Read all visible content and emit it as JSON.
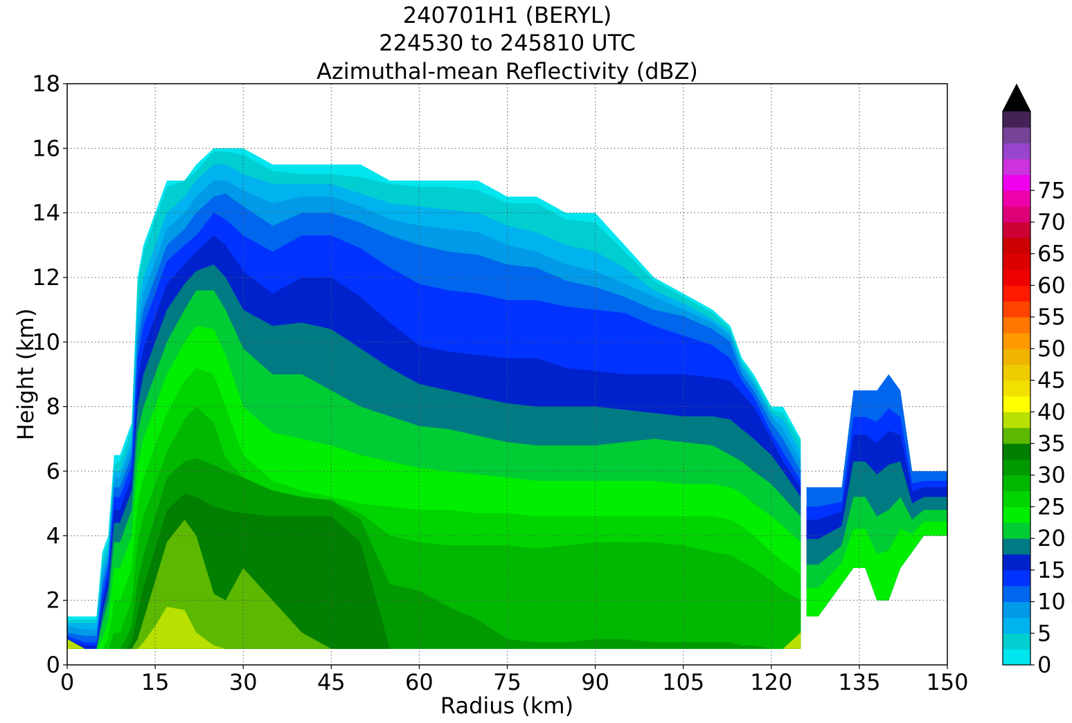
{
  "title_lines": [
    "240701H1 (BERYL)",
    "224530 to 245810 UTC",
    "Azimuthal-mean Reflectivity (dBZ)"
  ],
  "chart_data": {
    "type": "heatmap",
    "title": "240701H1 (BERYL) / 224530 to 245810 UTC / Azimuthal-mean Reflectivity (dBZ)",
    "xlabel": "Radius (km)",
    "ylabel": "Height (km)",
    "xlim": [
      0,
      150
    ],
    "ylim": [
      0,
      18
    ],
    "xticks": [
      0,
      15,
      30,
      45,
      60,
      75,
      90,
      105,
      120,
      135,
      150
    ],
    "yticks": [
      0,
      2,
      4,
      6,
      8,
      10,
      12,
      14,
      16,
      18
    ],
    "grid": true,
    "colorbar": {
      "label": "dBZ",
      "ticks": [
        0,
        5,
        10,
        15,
        20,
        25,
        30,
        35,
        40,
        45,
        50,
        55,
        60,
        65,
        70,
        75
      ],
      "levels_step": 2.5,
      "extend": "max",
      "colors": [
        "#00e5ee",
        "#00ced1",
        "#00b2ee",
        "#009ae8",
        "#0066ee",
        "#0033ff",
        "#0022cc",
        "#007b84",
        "#00cc33",
        "#00ee00",
        "#00d400",
        "#00b800",
        "#009a00",
        "#007f00",
        "#5cb800",
        "#b8e000",
        "#ffff00",
        "#f2e000",
        "#eecc00",
        "#eeb400",
        "#ff9900",
        "#ff7700",
        "#ff4400",
        "#ff1a00",
        "#ee0000",
        "#dd0000",
        "#cc0000",
        "#cc0033",
        "#dd0077",
        "#ee00aa",
        "#ee00ee",
        "#cc33dd",
        "#9944cc",
        "#774499",
        "#442255",
        "#000000"
      ]
    },
    "profiles": {
      "x": [
        0,
        3,
        5,
        6,
        7,
        8,
        9,
        10,
        11,
        12,
        13,
        15,
        17,
        20,
        22,
        25,
        27,
        30,
        35,
        40,
        45,
        50,
        55,
        60,
        65,
        70,
        75,
        80,
        85,
        90,
        95,
        100,
        105,
        110,
        113,
        115,
        117,
        120,
        122,
        125
      ],
      "top": [
        1.5,
        1.5,
        1.5,
        3.5,
        4.0,
        6.5,
        6.5,
        7.0,
        7.5,
        12.0,
        13.0,
        14.0,
        15.0,
        15.0,
        15.5,
        16.0,
        16.0,
        16.0,
        15.5,
        15.5,
        15.5,
        15.5,
        15.0,
        15.0,
        15.0,
        15.0,
        14.5,
        14.5,
        14.0,
        14.0,
        13.0,
        12.0,
        11.5,
        11.0,
        10.5,
        9.5,
        9.0,
        8.0,
        8.0,
        7.0
      ],
      "bottom": [
        0.8,
        0.5,
        0.5,
        0.5,
        0.5,
        0.5,
        0.5,
        0.5,
        0.5,
        0.5,
        0.5,
        0.5,
        0.5,
        0.5,
        0.5,
        0.5,
        0.5,
        0.5,
        0.5,
        0.5,
        0.5,
        0.5,
        0.5,
        0.5,
        0.5,
        0.5,
        0.5,
        0.5,
        0.5,
        0.5,
        0.5,
        0.5,
        0.5,
        0.5,
        0.5,
        0.5,
        0.5,
        0.5,
        0.5,
        1.0
      ],
      "contours": [
        {
          "dbz": 2.5,
          "h": [
            1.4,
            1.4,
            1.4,
            3.3,
            3.8,
            6.2,
            6.3,
            6.8,
            7.3,
            11.8,
            12.8,
            13.8,
            14.8,
            15.0,
            15.3,
            15.9,
            15.9,
            15.8,
            15.3,
            15.2,
            15.2,
            15.1,
            14.9,
            14.8,
            14.8,
            14.7,
            14.3,
            14.3,
            13.8,
            13.7,
            12.8,
            11.9,
            11.4,
            10.9,
            10.4,
            9.4,
            8.9,
            7.9,
            7.8,
            6.9
          ]
        },
        {
          "dbz": 5,
          "h": [
            1.3,
            1.3,
            1.3,
            3.0,
            3.6,
            6.0,
            6.0,
            6.5,
            7.0,
            11.0,
            12.0,
            13.0,
            14.0,
            14.5,
            15.0,
            15.5,
            15.5,
            15.2,
            14.9,
            14.9,
            14.9,
            14.6,
            14.3,
            14.2,
            14.1,
            14.0,
            13.6,
            13.4,
            13.0,
            12.8,
            12.3,
            11.6,
            11.2,
            10.7,
            10.3,
            9.3,
            8.8,
            7.8,
            7.6,
            6.6
          ]
        },
        {
          "dbz": 7.5,
          "h": [
            1.2,
            1.1,
            1.1,
            2.8,
            3.4,
            5.8,
            5.8,
            6.3,
            6.8,
            10.5,
            11.5,
            12.5,
            13.5,
            14.0,
            14.5,
            15.0,
            15.0,
            14.7,
            14.3,
            14.5,
            14.5,
            14.2,
            13.8,
            13.6,
            13.5,
            13.4,
            13.0,
            12.8,
            12.4,
            12.2,
            11.8,
            11.4,
            11.0,
            10.6,
            10.2,
            9.2,
            8.7,
            7.7,
            7.3,
            6.3
          ]
        },
        {
          "dbz": 10,
          "h": [
            1.0,
            0.9,
            0.9,
            2.5,
            3.2,
            5.5,
            5.5,
            6.0,
            6.5,
            10.0,
            11.0,
            12.0,
            13.0,
            13.5,
            14.0,
            14.5,
            14.6,
            14.2,
            13.6,
            14.0,
            14.0,
            13.7,
            13.3,
            13.0,
            12.8,
            12.7,
            12.4,
            12.3,
            11.9,
            11.7,
            11.4,
            11.0,
            10.8,
            10.4,
            10.0,
            9.0,
            8.5,
            7.5,
            7.0,
            6.0
          ]
        },
        {
          "dbz": 12.5,
          "h": [
            0.9,
            0.7,
            0.7,
            2.2,
            3.0,
            5.2,
            5.2,
            5.7,
            6.2,
            9.5,
            10.5,
            11.5,
            12.5,
            13.0,
            13.3,
            14.0,
            13.8,
            13.3,
            12.8,
            13.3,
            13.3,
            12.9,
            12.3,
            11.8,
            11.6,
            11.5,
            11.3,
            11.3,
            11.1,
            11.0,
            10.9,
            10.5,
            10.2,
            9.9,
            9.5,
            8.8,
            8.3,
            7.2,
            6.6,
            5.7
          ]
        },
        {
          "dbz": 15,
          "h": [
            0.8,
            0.6,
            0.6,
            1.9,
            2.7,
            4.8,
            4.8,
            5.3,
            5.8,
            8.8,
            9.8,
            10.8,
            11.8,
            12.4,
            12.8,
            13.3,
            13.0,
            12.2,
            11.5,
            12.0,
            12.0,
            11.4,
            10.6,
            9.9,
            9.7,
            9.6,
            9.5,
            9.5,
            9.2,
            9.1,
            9.0,
            9.0,
            9.0,
            8.9,
            8.8,
            8.4,
            8.0,
            7.0,
            6.3,
            5.5
          ]
        },
        {
          "dbz": 17.5,
          "h": [
            0.6,
            0.5,
            0.5,
            1.6,
            2.4,
            4.4,
            4.4,
            4.9,
            5.4,
            8.0,
            9.0,
            10.0,
            11.0,
            11.8,
            12.2,
            12.4,
            12.0,
            11.0,
            10.5,
            10.6,
            10.4,
            9.8,
            9.2,
            8.7,
            8.5,
            8.3,
            8.1,
            8.0,
            8.0,
            8.0,
            7.9,
            7.8,
            7.7,
            7.7,
            7.6,
            7.3,
            7.0,
            6.5,
            6.0,
            5.2
          ]
        },
        {
          "dbz": 20,
          "h": [
            0.5,
            0.5,
            0.5,
            1.3,
            2.0,
            3.8,
            3.8,
            4.3,
            4.8,
            7.2,
            8.0,
            9.0,
            10.0,
            11.0,
            11.6,
            11.6,
            11.0,
            9.8,
            9.0,
            9.0,
            8.5,
            8.0,
            7.7,
            7.4,
            7.3,
            7.1,
            6.9,
            6.8,
            6.8,
            6.8,
            6.9,
            7.0,
            6.9,
            6.8,
            6.5,
            6.3,
            6.0,
            5.6,
            5.2,
            4.6
          ]
        },
        {
          "dbz": 22.5,
          "h": [
            0.5,
            0.5,
            0.5,
            0.8,
            1.4,
            3.0,
            3.0,
            3.5,
            4.0,
            6.2,
            7.0,
            8.0,
            9.0,
            10.0,
            10.5,
            10.4,
            9.6,
            8.0,
            7.2,
            7.0,
            6.8,
            6.5,
            6.3,
            6.1,
            6.0,
            5.9,
            5.8,
            5.7,
            5.7,
            5.7,
            5.7,
            5.7,
            5.6,
            5.6,
            5.5,
            5.3,
            5.0,
            4.6,
            4.3,
            3.8
          ]
        },
        {
          "dbz": 25,
          "h": [
            0.5,
            0.5,
            0.5,
            0.5,
            0.8,
            2.0,
            2.0,
            2.5,
            3.0,
            5.0,
            5.8,
            6.8,
            7.8,
            8.8,
            9.2,
            9.0,
            8.0,
            6.5,
            5.7,
            5.4,
            5.2,
            5.0,
            4.9,
            4.8,
            4.8,
            4.7,
            4.7,
            4.6,
            4.6,
            4.6,
            4.6,
            4.6,
            4.6,
            4.6,
            4.5,
            4.3,
            4.0,
            3.5,
            3.2,
            2.8
          ]
        },
        {
          "dbz": 27.5,
          "h": [
            0.5,
            0.5,
            0.5,
            0.5,
            0.5,
            1.0,
            1.0,
            1.5,
            2.0,
            3.8,
            4.6,
            5.6,
            6.6,
            7.6,
            8.0,
            7.5,
            6.4,
            5.8,
            5.4,
            5.2,
            5.1,
            4.7,
            4.0,
            3.8,
            3.7,
            3.7,
            3.7,
            3.6,
            3.7,
            3.8,
            3.8,
            3.8,
            3.7,
            3.5,
            3.4,
            3.2,
            3.0,
            2.6,
            2.3,
            2.0
          ]
        },
        {
          "dbz": 30,
          "h": [
            0.5,
            0.5,
            0.5,
            0.5,
            0.5,
            0.5,
            0.5,
            0.8,
            1.2,
            2.6,
            3.4,
            4.6,
            5.8,
            6.3,
            6.4,
            6.2,
            6.0,
            5.8,
            5.4,
            5.2,
            5.1,
            4.5,
            2.5,
            2.3,
            1.8,
            1.4,
            0.8,
            0.7,
            0.7,
            0.8,
            0.8,
            0.7,
            0.7,
            0.7,
            0.7,
            0.6,
            0.6,
            0.5,
            0.5,
            0.5
          ]
        },
        {
          "dbz": 32.5,
          "h": [
            0.5,
            0.5,
            0.5,
            0.5,
            0.5,
            0.5,
            0.5,
            0.5,
            0.7,
            1.6,
            2.4,
            3.6,
            4.8,
            5.3,
            5.2,
            4.9,
            4.8,
            4.7,
            4.6,
            4.6,
            4.6,
            3.8,
            0.5,
            0.5,
            0.5,
            0.5,
            0.5,
            0.5,
            0.5,
            0.5,
            0.5,
            0.5,
            0.5,
            0.5,
            0.5,
            0.5,
            0.5,
            0.5,
            0.5,
            0.5
          ]
        },
        {
          "dbz": 35,
          "h": [
            0.5,
            0.5,
            0.5,
            0.5,
            0.5,
            0.5,
            0.5,
            0.5,
            0.5,
            0.8,
            1.4,
            2.6,
            3.8,
            4.5,
            4.0,
            2.2,
            2.0,
            3.0,
            2.0,
            1.0,
            0.5,
            0.5,
            0.5,
            0.5,
            0.5,
            0.5,
            0.5,
            0.5,
            0.5,
            0.5,
            0.5,
            0.5,
            0.5,
            0.5,
            0.5,
            0.5,
            0.5,
            0.5,
            0.5,
            0.5
          ]
        },
        {
          "dbz": 37.5,
          "h": [
            0.5,
            0.5,
            0.5,
            0.5,
            0.5,
            0.5,
            0.5,
            0.5,
            0.5,
            0.5,
            0.7,
            1.2,
            1.8,
            1.7,
            1.0,
            0.6,
            0.5,
            0.5,
            0.5,
            0.5,
            0.5,
            0.5,
            0.5,
            0.5,
            0.5,
            0.5,
            0.5,
            0.5,
            0.5,
            0.5,
            0.5,
            0.5,
            0.5,
            0.5,
            0.5,
            0.5,
            0.5,
            0.5,
            0.5,
            0.5
          ]
        }
      ]
    },
    "outer_feature": {
      "x": [
        126,
        128,
        130,
        132,
        134,
        136,
        138,
        140,
        142,
        144,
        146,
        148,
        150
      ],
      "top": [
        5.5,
        5.5,
        5.5,
        5.5,
        8.5,
        8.5,
        8.5,
        9.0,
        8.5,
        6.0,
        6.0,
        6.0,
        6.0
      ],
      "bottom": [
        1.5,
        1.5,
        2.0,
        2.5,
        3.0,
        3.0,
        2.0,
        2.0,
        3.0,
        3.5,
        4.0,
        4.0,
        4.0
      ]
    }
  }
}
